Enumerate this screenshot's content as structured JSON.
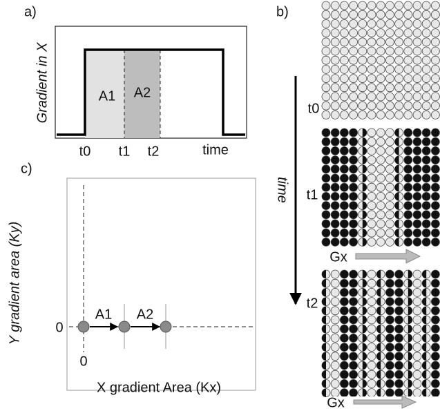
{
  "panel_a": {
    "label": "a)",
    "y_label": "Gradient in X",
    "areas": [
      "A1",
      "A2"
    ],
    "ticks": [
      "t0",
      "t1",
      "t2"
    ],
    "x_label": "time"
  },
  "panel_b": {
    "label": "b)",
    "time_label": "time",
    "steps": [
      "t0",
      "t1",
      "t2"
    ],
    "gradient_labels": [
      "Gx",
      "Gx"
    ]
  },
  "panel_c": {
    "label": "c)",
    "y_label": "Y gradient area (Ky)",
    "x_label": "X gradient Area (Kx)",
    "y_zero": "0",
    "x_zero": "0",
    "steps": [
      "A1",
      "A2"
    ]
  }
}
